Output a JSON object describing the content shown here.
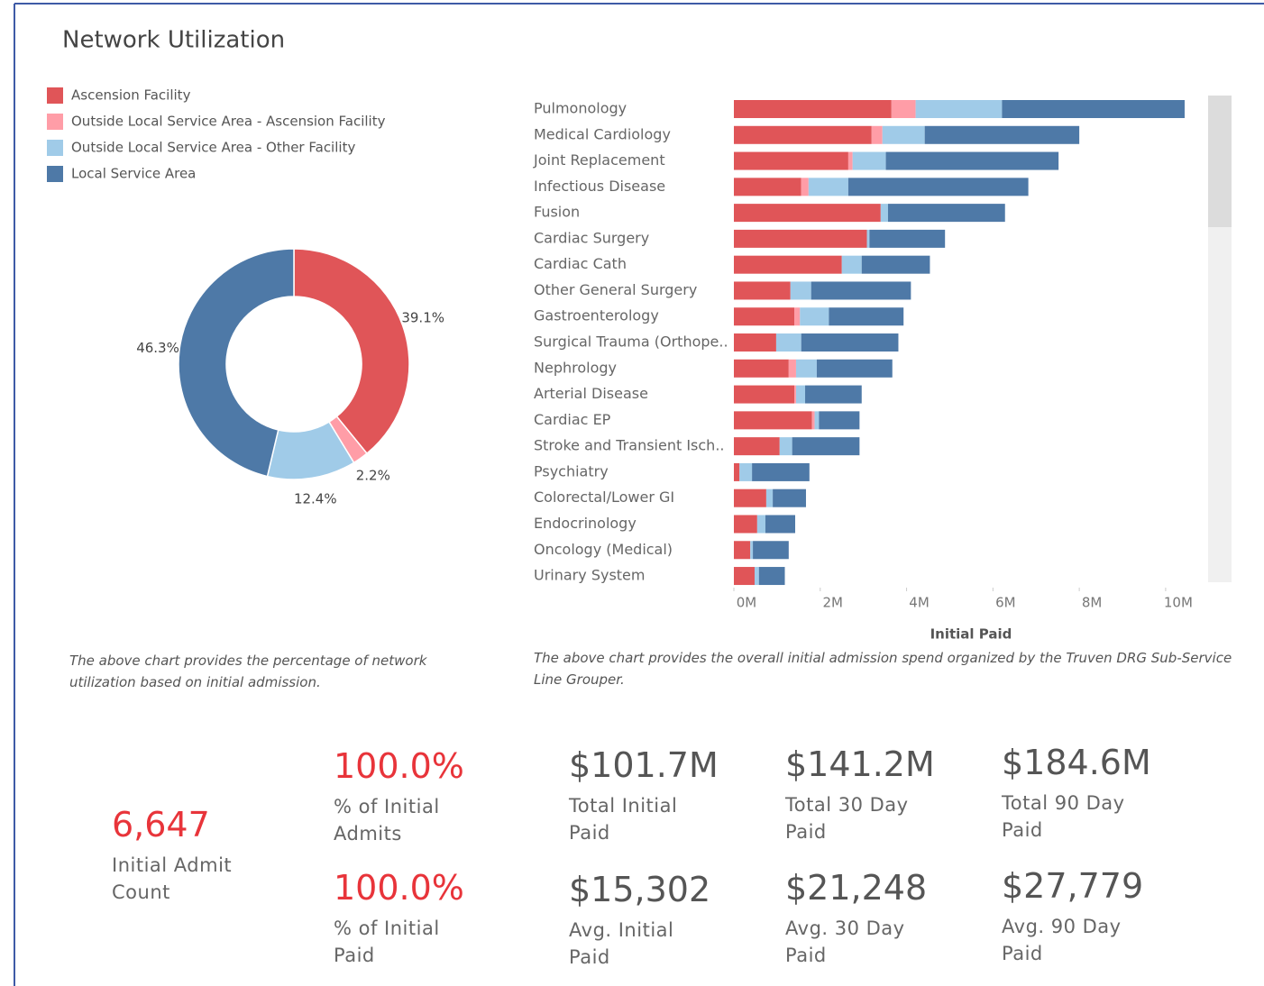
{
  "title": "Network Utilization",
  "chart_data": [
    {
      "type": "donut",
      "categories": [
        "Ascension Facility",
        "Outside Local Service Area - Ascension Facility",
        "Outside Local Service Area - Other Facility",
        "Local Service Area"
      ],
      "values": [
        39.1,
        2.2,
        12.4,
        46.3
      ],
      "value_labels": [
        "39.1%",
        "2.2%",
        "12.4%",
        "46.3%"
      ],
      "colors": [
        "#e05558",
        "#ff9da7",
        "#a0cbe8",
        "#4e79a7"
      ],
      "caption": "The above chart provides the percentage of network utilization based on initial admission."
    },
    {
      "type": "stacked_barh",
      "categories": [
        "Pulmonology",
        "Medical Cardiology",
        "Joint Replacement",
        "Infectious Disease",
        "Fusion",
        "Cardiac Surgery",
        "Cardiac Cath",
        "Other General Surgery",
        "Gastroenterology",
        "Surgical Trauma (Orthope..",
        "Nephrology",
        "Arterial Disease",
        "Cardiac EP",
        "Stroke and Transient Isch..",
        "Psychiatry",
        "Colorectal/Lower GI",
        "Endocrinology",
        "Oncology (Medical)",
        "Urinary System"
      ],
      "series": [
        {
          "name": "Ascension Facility",
          "color": "#e05558",
          "values": [
            3.65,
            3.19,
            2.65,
            1.56,
            3.4,
            3.08,
            2.5,
            1.31,
            1.4,
            0.98,
            1.27,
            1.4,
            1.81,
            1.06,
            0.13,
            0.75,
            0.54,
            0.38,
            0.48
          ]
        },
        {
          "name": "Outside Local Service Area - Ascension Facility",
          "color": "#ff9da7",
          "values": [
            0.56,
            0.25,
            0.1,
            0.17,
            0,
            0,
            0,
            0,
            0.13,
            0,
            0.17,
            0.04,
            0.06,
            0,
            0,
            0,
            0,
            0,
            0
          ]
        },
        {
          "name": "Outside Local Service Area - Other Facility",
          "color": "#a0cbe8",
          "values": [
            2.0,
            0.98,
            0.77,
            0.92,
            0.17,
            0.06,
            0.46,
            0.48,
            0.67,
            0.58,
            0.48,
            0.21,
            0.1,
            0.29,
            0.29,
            0.15,
            0.19,
            0.06,
            0.1
          ]
        },
        {
          "name": "Local Service Area",
          "color": "#4e79a7",
          "values": [
            4.23,
            3.58,
            4.0,
            4.17,
            2.71,
            1.75,
            1.58,
            2.31,
            1.73,
            2.25,
            1.75,
            1.31,
            0.94,
            1.56,
            1.33,
            0.77,
            0.69,
            0.83,
            0.6
          ]
        }
      ],
      "xlim": [
        0,
        10.9
      ],
      "xticks": [
        {
          "value": 0,
          "label": "0M"
        },
        {
          "value": 2,
          "label": "2M"
        },
        {
          "value": 4,
          "label": "4M"
        },
        {
          "value": 6,
          "label": "6M"
        },
        {
          "value": 8,
          "label": "8M"
        },
        {
          "value": 10,
          "label": "10M"
        }
      ],
      "xlabel": "Initial Paid",
      "caption": "The above chart provides the overall initial admission spend organized by the Truven DRG Sub-Service Line Grouper."
    }
  ],
  "kpis": [
    {
      "value": "6,647",
      "label": "Initial Admit Count",
      "color": "#e8343a"
    },
    {
      "value": "100.0%",
      "label": "% of Initial Admits",
      "color": "#e8343a"
    },
    {
      "value": "$101.7M",
      "label": "Total Initial Paid",
      "color": "#555555"
    },
    {
      "value": "$141.2M",
      "label": "Total 30 Day Paid",
      "color": "#555555"
    },
    {
      "value": "$184.6M",
      "label": "Total 90 Day Paid",
      "color": "#555555"
    },
    {
      "value": "100.0%",
      "label": "% of Initial Paid",
      "color": "#e8343a"
    },
    {
      "value": "$15,302",
      "label": "Avg. Initial Paid",
      "color": "#555555"
    },
    {
      "value": "$21,248",
      "label": "Avg. 30 Day Paid",
      "color": "#555555"
    },
    {
      "value": "$27,779",
      "label": "Avg. 90 Day Paid",
      "color": "#555555"
    }
  ]
}
